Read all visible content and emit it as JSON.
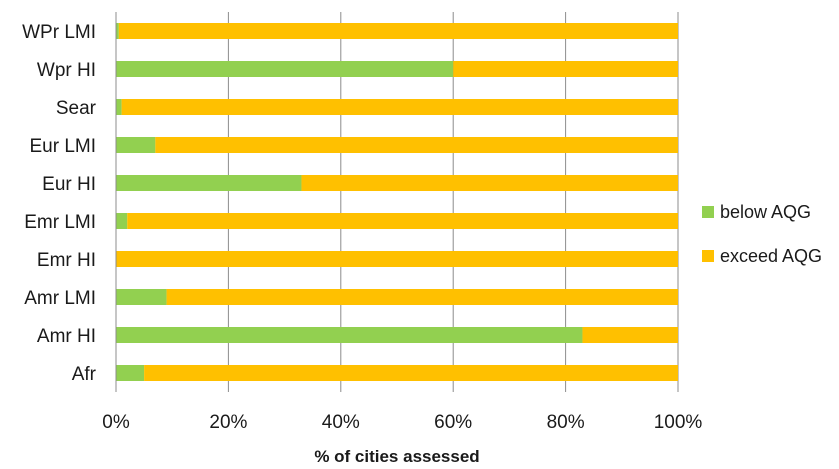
{
  "chart_data": {
    "type": "bar",
    "orientation": "horizontal",
    "stacked": "percent",
    "categories": [
      "Afr",
      "Amr HI",
      "Amr LMI",
      "Emr HI",
      "Emr LMI",
      "Eur HI",
      "Eur LMI",
      "Sear",
      "Wpr HI",
      "WPr LMI"
    ],
    "series": [
      {
        "name": "below AQG",
        "color": "#92d050",
        "values": [
          5,
          83,
          9,
          0,
          2,
          33,
          7,
          1,
          60,
          0.5
        ]
      },
      {
        "name": "exceed AQG",
        "color": "#ffc000",
        "values": [
          95,
          17,
          91,
          100,
          98,
          67,
          93,
          99,
          40,
          99.5
        ]
      }
    ],
    "x_ticks": [
      "0%",
      "20%",
      "40%",
      "60%",
      "80%",
      "100%"
    ],
    "xlim": [
      0,
      100
    ],
    "xlabel": "% of cities assessed",
    "ylabel": "",
    "grid": "vertical",
    "legend_position": "right"
  }
}
